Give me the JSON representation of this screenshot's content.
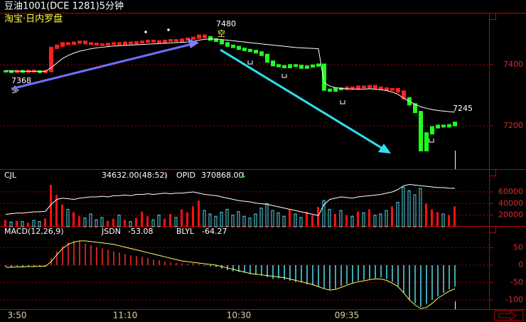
{
  "chart_data": [
    {
      "type": "price",
      "title": "豆油1001(DCE 1281)5分钟",
      "subtitle": "淘宝·日内罗盘",
      "values": [
        7378,
        7376,
        7379,
        7377,
        7380,
        7378,
        7376,
        7379,
        7455,
        7462,
        7470,
        7468,
        7472,
        7475,
        7470,
        7468,
        7466,
        7465,
        7468,
        7470,
        7468,
        7472,
        7470,
        7473,
        7475,
        7478,
        7476,
        7474,
        7478,
        7480,
        7478,
        7482,
        7485,
        7488,
        7495,
        7490,
        7482,
        7478,
        7470,
        7462,
        7458,
        7452,
        7448,
        7445,
        7440,
        7432,
        7410,
        7398,
        7395,
        7392,
        7398,
        7396,
        7390,
        7394,
        7397,
        7400,
        7318,
        7315,
        7322,
        7320,
        7325,
        7322,
        7328,
        7326,
        7330,
        7325,
        7322,
        7318,
        7320,
        7312,
        7290,
        7270,
        7245,
        7120,
        7175,
        7195,
        7200,
        7198,
        7202,
        7210
      ],
      "up_color": "#ff2020",
      "down_color": "#20ff20",
      "ma": {
        "color": "#ffffff",
        "values": [
          7380,
          7379,
          7379,
          7378,
          7378,
          7378,
          7378,
          7378,
          7390,
          7405,
          7420,
          7430,
          7438,
          7444,
          7448,
          7452,
          7455,
          7457,
          7459,
          7461,
          7462,
          7463,
          7464,
          7465,
          7466,
          7467,
          7468,
          7469,
          7470,
          7471,
          7472,
          7473,
          7474,
          7476,
          7480,
          7483,
          7484,
          7484,
          7482,
          7480,
          7478,
          7476,
          7474,
          7472,
          7470,
          7468,
          7466,
          7464,
          7462,
          7460,
          7458,
          7456,
          7455,
          7454,
          7453,
          7452,
          7340,
          7330,
          7325,
          7322,
          7321,
          7320,
          7320,
          7320,
          7321,
          7320,
          7318,
          7315,
          7310,
          7303,
          7290,
          7280,
          7270,
          7262,
          7257,
          7253,
          7250,
          7248,
          7246,
          7245
        ]
      },
      "annotations": [
        "7368",
        "多",
        "7480",
        "空",
        "7245"
      ],
      "ylim": [
        7058,
        7565
      ],
      "yticks": [
        7400,
        7200
      ],
      "grid": true
    },
    {
      "type": "volume",
      "header": [
        {
          "text": "CJL",
          "color": "#ffffff"
        },
        {
          "text": "34632.00(48:52)",
          "color": "#ffffff"
        },
        {
          "text": "↑",
          "color": "#ff3030"
        },
        {
          "text": "OPID",
          "color": "#ffffff"
        },
        {
          "text": "370868.00",
          "color": "#ffffff"
        },
        {
          "text": "↓",
          "color": "#30ff30"
        }
      ],
      "values": [
        12000,
        8000,
        10000,
        9000,
        7000,
        11000,
        9000,
        14000,
        72000,
        55000,
        38000,
        30000,
        25000,
        18000,
        15000,
        22000,
        12000,
        16000,
        10000,
        14000,
        20000,
        12000,
        9000,
        15000,
        26000,
        18000,
        12000,
        20000,
        14000,
        22000,
        16000,
        30000,
        25000,
        35000,
        45000,
        28000,
        22000,
        18000,
        25000,
        30000,
        20000,
        26000,
        18000,
        15000,
        22000,
        32000,
        40000,
        28000,
        24000,
        18000,
        30000,
        22000,
        16000,
        26000,
        20000,
        34000,
        45000,
        30000,
        22000,
        28000,
        20000,
        18000,
        26000,
        24000,
        30000,
        20000,
        22000,
        28000,
        35000,
        42000,
        68000,
        62000,
        55000,
        66000,
        40000,
        30000,
        25000,
        22000,
        20000,
        35000
      ],
      "up_color": "#ff1010",
      "down_color": "#50e0f0",
      "opid": {
        "axis": "y2",
        "color": "#ffffff",
        "values": [
          350000,
          350500,
          351000,
          351000,
          351500,
          352000,
          352000,
          352500,
          358000,
          362000,
          363000,
          362500,
          362000,
          363000,
          363500,
          364000,
          364000,
          364500,
          364000,
          365000,
          365000,
          365500,
          365000,
          366000,
          366000,
          366500,
          366000,
          366500,
          367000,
          366500,
          367000,
          367000,
          367500,
          368000,
          367000,
          366000,
          365500,
          365000,
          364000,
          363000,
          362000,
          361000,
          360500,
          360000,
          359000,
          358500,
          358000,
          357000,
          356000,
          355000,
          354000,
          353000,
          352000,
          351000,
          350000,
          349000,
          358000,
          362000,
          363000,
          364000,
          363500,
          363000,
          364000,
          364500,
          365000,
          365500,
          366000,
          367000,
          368000,
          370000,
          373000,
          374000,
          373500,
          373000,
          372500,
          372000,
          371500,
          371500,
          371000,
          370868
        ]
      },
      "ylim": [
        0,
        77000
      ],
      "yticks": [
        60000,
        40000,
        20000
      ],
      "y2lim": [
        340000,
        376000
      ],
      "grid": true
    },
    {
      "type": "macd",
      "header": [
        {
          "text": "MACD(12,26,9)",
          "color": "#ffffff"
        },
        {
          "text": "JSDN",
          "color": "#ffffff"
        },
        {
          "text": "-53.08",
          "color": "#ffffff"
        },
        {
          "text": "BLYL",
          "color": "#ffffff"
        },
        {
          "text": "-64.27",
          "color": "#ffffff"
        }
      ],
      "categories": [
        null,
        null,
        "3:50",
        null,
        null,
        null,
        null,
        null,
        null,
        null,
        null,
        null,
        null,
        null,
        null,
        null,
        null,
        null,
        null,
        null,
        null,
        "11:10",
        null,
        null,
        null,
        null,
        null,
        null,
        null,
        null,
        null,
        null,
        null,
        null,
        null,
        null,
        null,
        null,
        null,
        null,
        null,
        "10:30",
        null,
        null,
        null,
        null,
        null,
        null,
        null,
        null,
        null,
        null,
        null,
        null,
        null,
        null,
        null,
        null,
        null,
        null,
        "09:35",
        null,
        null,
        null,
        null,
        null,
        null,
        null,
        null,
        null,
        null,
        null,
        null,
        null,
        null,
        null,
        null,
        null,
        null,
        null
      ],
      "values": [
        -4,
        -5,
        -3,
        -4,
        -5,
        -4,
        -3,
        -2,
        20,
        40,
        55,
        65,
        70,
        68,
        62,
        58,
        52,
        48,
        44,
        40,
        36,
        32,
        28,
        26,
        24,
        20,
        16,
        14,
        10,
        8,
        6,
        5,
        4,
        6,
        3,
        -2,
        -4,
        -6,
        -10,
        -14,
        -18,
        -20,
        -22,
        -26,
        -28,
        -30,
        -35,
        -40,
        -38,
        -42,
        -45,
        -48,
        -50,
        -55,
        -58,
        -62,
        -66,
        -70,
        -68,
        -60,
        -55,
        -50,
        -45,
        -42,
        -40,
        -38,
        -35,
        -40,
        -48,
        -60,
        -80,
        -100,
        -110,
        -120,
        -112,
        -100,
        -90,
        -80,
        -70,
        -62
      ],
      "pos_color": "#ff3030",
      "neg_color": "#50e0f0",
      "line": {
        "color": "#ffff60",
        "values": [
          -6,
          -6,
          -5,
          -5,
          -4,
          -4,
          -3,
          -3,
          10,
          30,
          48,
          60,
          66,
          70,
          70,
          68,
          66,
          64,
          62,
          60,
          56,
          52,
          48,
          44,
          40,
          36,
          32,
          28,
          24,
          20,
          16,
          12,
          10,
          8,
          6,
          4,
          2,
          0,
          -4,
          -8,
          -12,
          -16,
          -20,
          -24,
          -26,
          -28,
          -30,
          -32,
          -34,
          -36,
          -40,
          -44,
          -48,
          -52,
          -56,
          -62,
          -68,
          -72,
          -70,
          -64,
          -58,
          -52,
          -48,
          -45,
          -42,
          -40,
          -40,
          -44,
          -52,
          -62,
          -80,
          -100,
          -115,
          -125,
          -122,
          -110,
          -95,
          -85,
          -75,
          -68
        ]
      },
      "ylim": [
        -127,
        82
      ],
      "yticks": [
        50,
        0,
        -50,
        -100
      ],
      "grid": true
    }
  ]
}
